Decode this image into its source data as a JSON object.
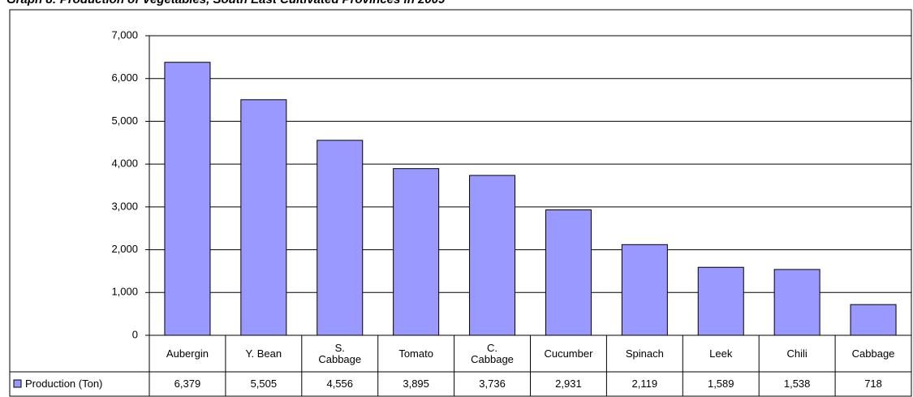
{
  "chart_data": {
    "type": "bar",
    "title": "Graph 8: Production of Vegetables, South East Cultivated Provinces in 2009",
    "categories": [
      "Aubergin",
      "Y. Bean",
      "S.\nCabbage",
      "Tomato",
      "C.\nCabbage",
      "Cucumber",
      "Spinach",
      "Leek",
      "Chili",
      "Cabbage"
    ],
    "series": [
      {
        "name": "Production (Ton)",
        "color": "#9999ff",
        "values": [
          6379,
          5505,
          4556,
          3895,
          3736,
          2931,
          2119,
          1589,
          1538,
          718
        ],
        "value_labels": [
          "6,379",
          "5,505",
          "4,556",
          "3,895",
          "3,736",
          "2,931",
          "2,119",
          "1,589",
          "1,538",
          "718"
        ]
      }
    ],
    "ylim": [
      0,
      7000
    ],
    "yticks": [
      0,
      {
        "value": 1000,
        "label": "1,000"
      },
      {
        "value": 2000,
        "label": "2,000"
      },
      {
        "value": 3000,
        "label": "3,000"
      },
      {
        "value": 4000,
        "label": "4,000"
      },
      {
        "value": 5000,
        "label": "5,000"
      },
      {
        "value": 6000,
        "label": "6,000"
      },
      {
        "value": 7000,
        "label": "7,000"
      }
    ],
    "grid": true
  }
}
